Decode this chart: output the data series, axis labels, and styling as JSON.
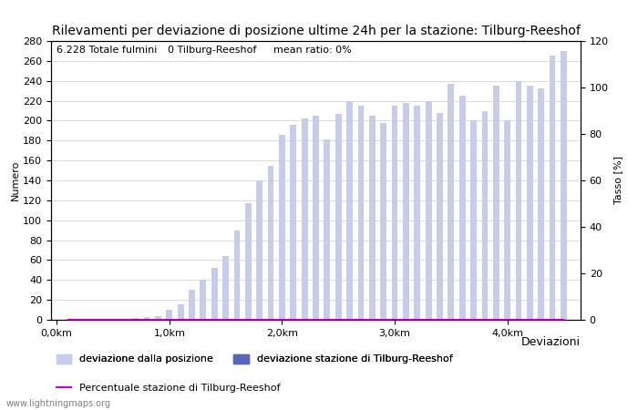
{
  "title": "Rilevamenti per deviazione di posizione ultime 24h per la stazione: Tilburg-Reeshof",
  "ylabel_left": "Numero",
  "ylabel_right": "Tasso [%]",
  "xlabel": "Deviazioni",
  "ylim_left": [
    0,
    280
  ],
  "ylim_right": [
    0,
    120
  ],
  "yticks_left": [
    0,
    20,
    40,
    60,
    80,
    100,
    120,
    140,
    160,
    180,
    200,
    220,
    240,
    260,
    280
  ],
  "yticks_right": [
    0,
    20,
    40,
    60,
    80,
    100,
    120
  ],
  "annotation_total": "6.228 Totale fulmini",
  "annotation_station": "0 Tilburg-Reeshof",
  "annotation_ratio": "mean ratio: 0%",
  "watermark": "www.lightningmaps.org",
  "legend_entries": [
    {
      "label": "deviazione dalla posizione",
      "color": "#c8cceb"
    },
    {
      "label": "deviazione stazione di Tilburg-Reeshof",
      "color": "#5566bb"
    },
    {
      "label": "Percentuale stazione di Tilburg-Reeshof",
      "color": "#cc00cc"
    }
  ],
  "bar_positions": [
    0.1,
    0.2,
    0.3,
    0.4,
    0.5,
    0.6,
    0.7,
    0.8,
    0.9,
    1.0,
    1.1,
    1.2,
    1.3,
    1.4,
    1.5,
    1.6,
    1.7,
    1.8,
    1.9,
    2.0,
    2.1,
    2.2,
    2.3,
    2.4,
    2.5,
    2.6,
    2.7,
    2.8,
    2.9,
    3.0,
    3.1,
    3.2,
    3.3,
    3.4,
    3.5,
    3.6,
    3.7,
    3.8,
    3.9,
    4.0,
    4.1,
    4.2,
    4.3,
    4.4,
    4.5
  ],
  "bar_values_total": [
    1,
    1,
    1,
    1,
    1,
    1,
    2,
    3,
    4,
    10,
    16,
    30,
    40,
    52,
    64,
    90,
    117,
    140,
    155,
    186,
    196,
    202,
    205,
    181,
    207,
    220,
    215,
    205,
    198,
    215,
    218,
    215,
    220,
    208,
    237,
    225,
    200,
    210,
    235,
    200,
    240,
    235,
    232,
    265,
    270
  ],
  "bar_values_station": [
    0,
    0,
    0,
    0,
    0,
    0,
    0,
    0,
    0,
    0,
    0,
    0,
    0,
    0,
    0,
    0,
    0,
    0,
    0,
    0,
    0,
    0,
    0,
    0,
    0,
    0,
    0,
    0,
    0,
    0,
    0,
    0,
    0,
    0,
    0,
    0,
    0,
    0,
    0,
    0,
    0,
    0,
    0,
    0,
    0
  ],
  "bar_width": 0.055,
  "xtick_positions": [
    0.0,
    1.0,
    2.0,
    3.0,
    4.0
  ],
  "xtick_labels": [
    "0,0km",
    "1,0km",
    "2,0km",
    "3,0km",
    "4,0km"
  ],
  "xlim": [
    -0.05,
    4.65
  ],
  "background_color": "#ffffff",
  "plot_bg_color": "#ffffff",
  "grid_color": "#cccccc",
  "title_fontsize": 10,
  "axis_fontsize": 8,
  "tick_fontsize": 8,
  "annotation_fontsize": 8,
  "legend_fontsize": 8
}
